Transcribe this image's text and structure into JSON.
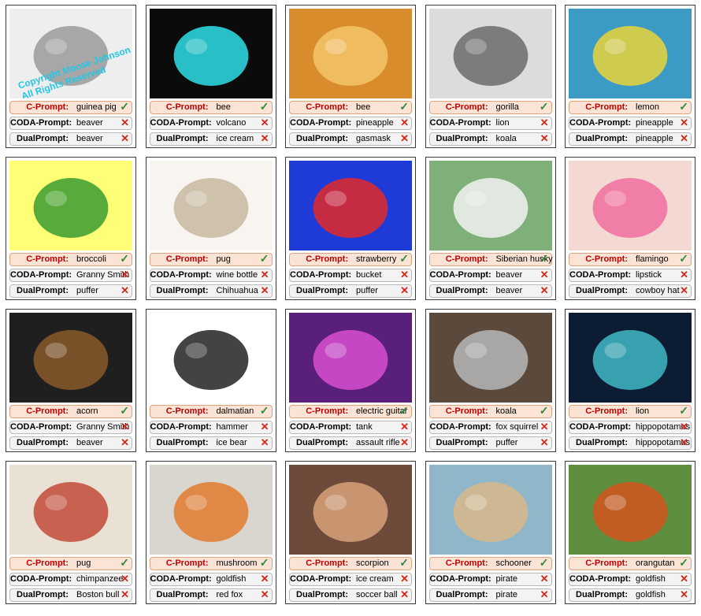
{
  "figure": {
    "row_labels": [
      "C-Prompt:",
      "CODA-Prompt:",
      "DualPrompt:"
    ],
    "cells": [
      {
        "thumb": "guinea-pig-sketch",
        "bg": "#eeeeee",
        "fg": "#9a9a9a",
        "caption": "Copyright Moose Johnson\nAll Rights Reserved",
        "preds": [
          {
            "text": "guinea pig",
            "correct": true
          },
          {
            "text": "beaver",
            "correct": false
          },
          {
            "text": "beaver",
            "correct": false
          }
        ]
      },
      {
        "thumb": "bee-costume-night",
        "bg": "#0b0b0b",
        "fg": "#2ee0e8",
        "preds": [
          {
            "text": "bee",
            "correct": true
          },
          {
            "text": "volcano",
            "correct": false
          },
          {
            "text": "ice cream",
            "correct": false
          }
        ]
      },
      {
        "thumb": "bee-painting",
        "bg": "#d98c2b",
        "fg": "#f3c46a",
        "preds": [
          {
            "text": "bee",
            "correct": true
          },
          {
            "text": "pineapple",
            "correct": false
          },
          {
            "text": "gasmask",
            "correct": false
          }
        ]
      },
      {
        "thumb": "gorilla-sculpture",
        "bg": "#dcdcdc",
        "fg": "#6b6b6b",
        "preds": [
          {
            "text": "gorilla",
            "correct": true
          },
          {
            "text": "lion",
            "correct": false
          },
          {
            "text": "koala",
            "correct": false
          }
        ]
      },
      {
        "thumb": "lemon-mural",
        "bg": "#3c9bc4",
        "fg": "#e7d33a",
        "preds": [
          {
            "text": "lemon",
            "correct": true
          },
          {
            "text": "pineapple",
            "correct": false
          },
          {
            "text": "pineapple",
            "correct": false
          }
        ]
      },
      {
        "thumb": "broccoli-cartoon",
        "bg": "#ffff77",
        "fg": "#3b9b2f",
        "preds": [
          {
            "text": "broccoli",
            "correct": true
          },
          {
            "text": "Granny Smith",
            "correct": false
          },
          {
            "text": "puffer",
            "correct": false
          }
        ]
      },
      {
        "thumb": "pug-drawing",
        "bg": "#f8f4ef",
        "fg": "#c8b8a0",
        "preds": [
          {
            "text": "pug",
            "correct": true
          },
          {
            "text": "wine bottle",
            "correct": false
          },
          {
            "text": "Chihuahua",
            "correct": false
          }
        ]
      },
      {
        "thumb": "strawberry-cartoon",
        "bg": "#1e3bd8",
        "fg": "#e32a2a",
        "preds": [
          {
            "text": "strawberry",
            "correct": true
          },
          {
            "text": "bucket",
            "correct": false
          },
          {
            "text": "puffer",
            "correct": false
          }
        ]
      },
      {
        "thumb": "husky-stained-glass",
        "bg": "#7fb07a",
        "fg": "#f2f2f2",
        "preds": [
          {
            "text": "Siberian husky",
            "correct": true
          },
          {
            "text": "beaver",
            "correct": false
          },
          {
            "text": "beaver",
            "correct": false
          }
        ]
      },
      {
        "thumb": "flamingo-alice",
        "bg": "#f4d9d3",
        "fg": "#ef6d9d",
        "preds": [
          {
            "text": "flamingo",
            "correct": true
          },
          {
            "text": "lipstick",
            "correct": false
          },
          {
            "text": "cowboy hat",
            "correct": false
          }
        ]
      },
      {
        "thumb": "acorn-painting",
        "bg": "#1f1f1f",
        "fg": "#8a5a2a",
        "preds": [
          {
            "text": "acorn",
            "correct": true
          },
          {
            "text": "Granny Smith",
            "correct": false
          },
          {
            "text": "beaver",
            "correct": false
          }
        ]
      },
      {
        "thumb": "dalmatian-drawing",
        "bg": "#ffffff",
        "fg": "#222222",
        "preds": [
          {
            "text": "dalmatian",
            "correct": true
          },
          {
            "text": "hammer",
            "correct": false
          },
          {
            "text": "ice bear",
            "correct": false
          }
        ]
      },
      {
        "thumb": "electric-guitar-art",
        "bg": "#5a1f7a",
        "fg": "#d84fd0",
        "preds": [
          {
            "text": "electric guitar",
            "correct": true
          },
          {
            "text": "tank",
            "correct": false
          },
          {
            "text": "assault rifle",
            "correct": false
          }
        ]
      },
      {
        "thumb": "koala-photo",
        "bg": "#5b4a3c",
        "fg": "#b7b7b7",
        "preds": [
          {
            "text": "koala",
            "correct": true
          },
          {
            "text": "fox squirrel",
            "correct": false
          },
          {
            "text": "puffer",
            "correct": false
          }
        ]
      },
      {
        "thumb": "lion-nebula",
        "bg": "#0b1c33",
        "fg": "#41b8c7",
        "preds": [
          {
            "text": "lion",
            "correct": true
          },
          {
            "text": "hippopotamus",
            "correct": false
          },
          {
            "text": "hippopotamus",
            "correct": false
          }
        ]
      },
      {
        "thumb": "pug-pop-art",
        "bg": "#e9e2d4",
        "fg": "#c34a3a",
        "preds": [
          {
            "text": "pug",
            "correct": true
          },
          {
            "text": "chimpanzee",
            "correct": false
          },
          {
            "text": "Boston bull",
            "correct": false
          }
        ]
      },
      {
        "thumb": "mushroom-watercolor",
        "bg": "#d9d6cf",
        "fg": "#e07a2e",
        "preds": [
          {
            "text": "mushroom",
            "correct": true
          },
          {
            "text": "goldfish",
            "correct": false
          },
          {
            "text": "red fox",
            "correct": false
          }
        ]
      },
      {
        "thumb": "scorpion-face-paint",
        "bg": "#6d4a3a",
        "fg": "#d8a27a",
        "preds": [
          {
            "text": "scorpion",
            "correct": true
          },
          {
            "text": "ice cream",
            "correct": false
          },
          {
            "text": "soccer ball",
            "correct": false
          }
        ]
      },
      {
        "thumb": "schooner-painting",
        "bg": "#8fb6c9",
        "fg": "#d9b88a",
        "preds": [
          {
            "text": "schooner",
            "correct": true
          },
          {
            "text": "pirate",
            "correct": false
          },
          {
            "text": "pirate",
            "correct": false
          }
        ]
      },
      {
        "thumb": "orangutan-painting",
        "bg": "#5e8f3f",
        "fg": "#d2551f",
        "preds": [
          {
            "text": "orangutan",
            "correct": true
          },
          {
            "text": "goldfish",
            "correct": false
          },
          {
            "text": "goldfish",
            "correct": false
          }
        ]
      }
    ]
  }
}
